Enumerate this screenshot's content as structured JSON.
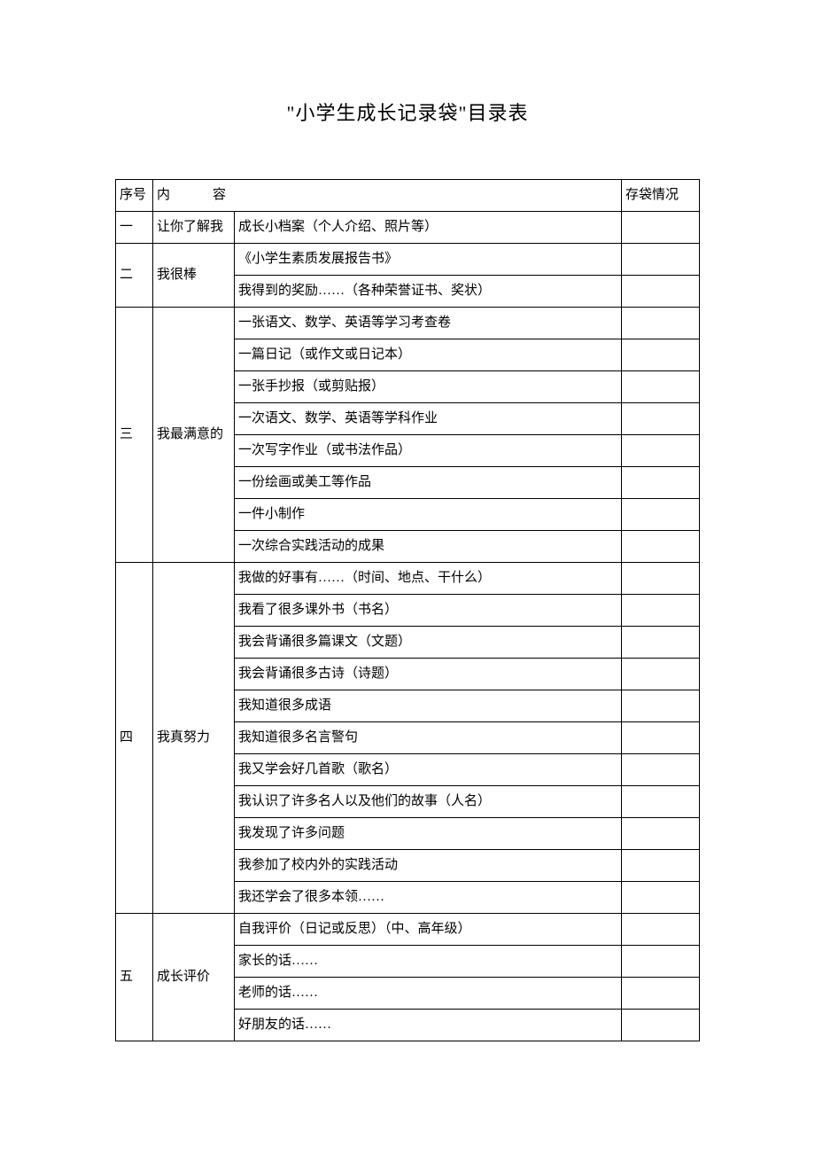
{
  "title": "\"小学生成长记录袋\"目录表",
  "table": {
    "headers": {
      "seq": "序号",
      "content": "内容",
      "status": "存袋情况"
    },
    "sections": [
      {
        "seq": "一",
        "category": "让你了解我",
        "items": [
          "成长小档案（个人介绍、照片等）"
        ]
      },
      {
        "seq": "二",
        "category": "我很棒",
        "items": [
          "《小学生素质发展报告书》",
          "我得到的奖励……（各种荣誉证书、奖状）"
        ]
      },
      {
        "seq": "三",
        "category": "我最满意的",
        "items": [
          "一张语文、数学、英语等学习考查卷",
          "一篇日记（或作文或日记本）",
          "一张手抄报（或剪贴报）",
          "一次语文、数学、英语等学科作业",
          "一次写字作业（或书法作品）",
          "一份绘画或美工等作品",
          "一件小制作",
          "一次综合实践活动的成果"
        ]
      },
      {
        "seq": "四",
        "category": "我真努力",
        "items": [
          "我做的好事有……（时间、地点、干什么）",
          "我看了很多课外书（书名）",
          "我会背诵很多篇课文（文题）",
          "我会背诵很多古诗（诗题）",
          "我知道很多成语",
          "我知道很多名言警句",
          "我又学会好几首歌（歌名）",
          "我认识了许多名人以及他们的故事（人名）",
          "我发现了许多问题",
          "我参加了校内外的实践活动",
          "我还学会了很多本领……"
        ]
      },
      {
        "seq": "五",
        "category": "成长评价",
        "items": [
          "自我评价（日记或反思）（中、高年级）",
          "家长的话……",
          "老师的话……",
          "好朋友的话……"
        ]
      }
    ]
  },
  "colors": {
    "background": "#ffffff",
    "border": "#000000",
    "text": "#000000"
  },
  "typography": {
    "title_fontsize": 22,
    "body_fontsize": 15,
    "font_family": "SimSun"
  }
}
